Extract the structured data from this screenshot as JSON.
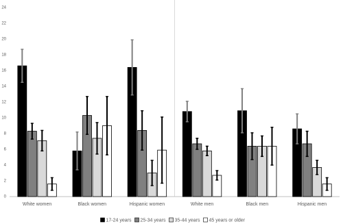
{
  "chart_data": {
    "type": "bar",
    "categories": [
      "White women",
      "Black women",
      "Hispanic women",
      "White men",
      "Black men",
      "Hispanic men"
    ],
    "series": [
      {
        "name": "17-24 years",
        "color": "#000000",
        "error_color": "#808080",
        "values": [
          16.6,
          5.8,
          16.4,
          10.8,
          10.9,
          8.6
        ],
        "errors": [
          2.1,
          2.4,
          3.5,
          1.3,
          2.8,
          1.9
        ]
      },
      {
        "name": "25-34 years",
        "color": "#808080",
        "error_color": "#000000",
        "values": [
          8.3,
          10.3,
          8.4,
          6.7,
          6.4,
          6.7
        ],
        "errors": [
          1.0,
          2.4,
          2.5,
          0.7,
          1.7,
          1.6
        ]
      },
      {
        "name": "35-44 years",
        "color": "#d9d9d9",
        "error_color": "#000000",
        "values": [
          7.1,
          7.4,
          3.0,
          5.8,
          6.4,
          3.7
        ],
        "errors": [
          1.3,
          2.0,
          1.6,
          0.6,
          1.3,
          0.9
        ]
      },
      {
        "name": "45 years or older",
        "color": "#ffffff",
        "error_color": "#000000",
        "values": [
          1.6,
          9.0,
          5.9,
          2.7,
          6.4,
          1.6
        ],
        "errors": [
          0.8,
          3.7,
          4.2,
          0.6,
          2.4,
          0.8
        ]
      }
    ],
    "ylim": [
      0,
      24
    ],
    "yticks": [
      0,
      2,
      4,
      6,
      8,
      10,
      12,
      14,
      16,
      18,
      20,
      22,
      24
    ],
    "grid": false
  }
}
